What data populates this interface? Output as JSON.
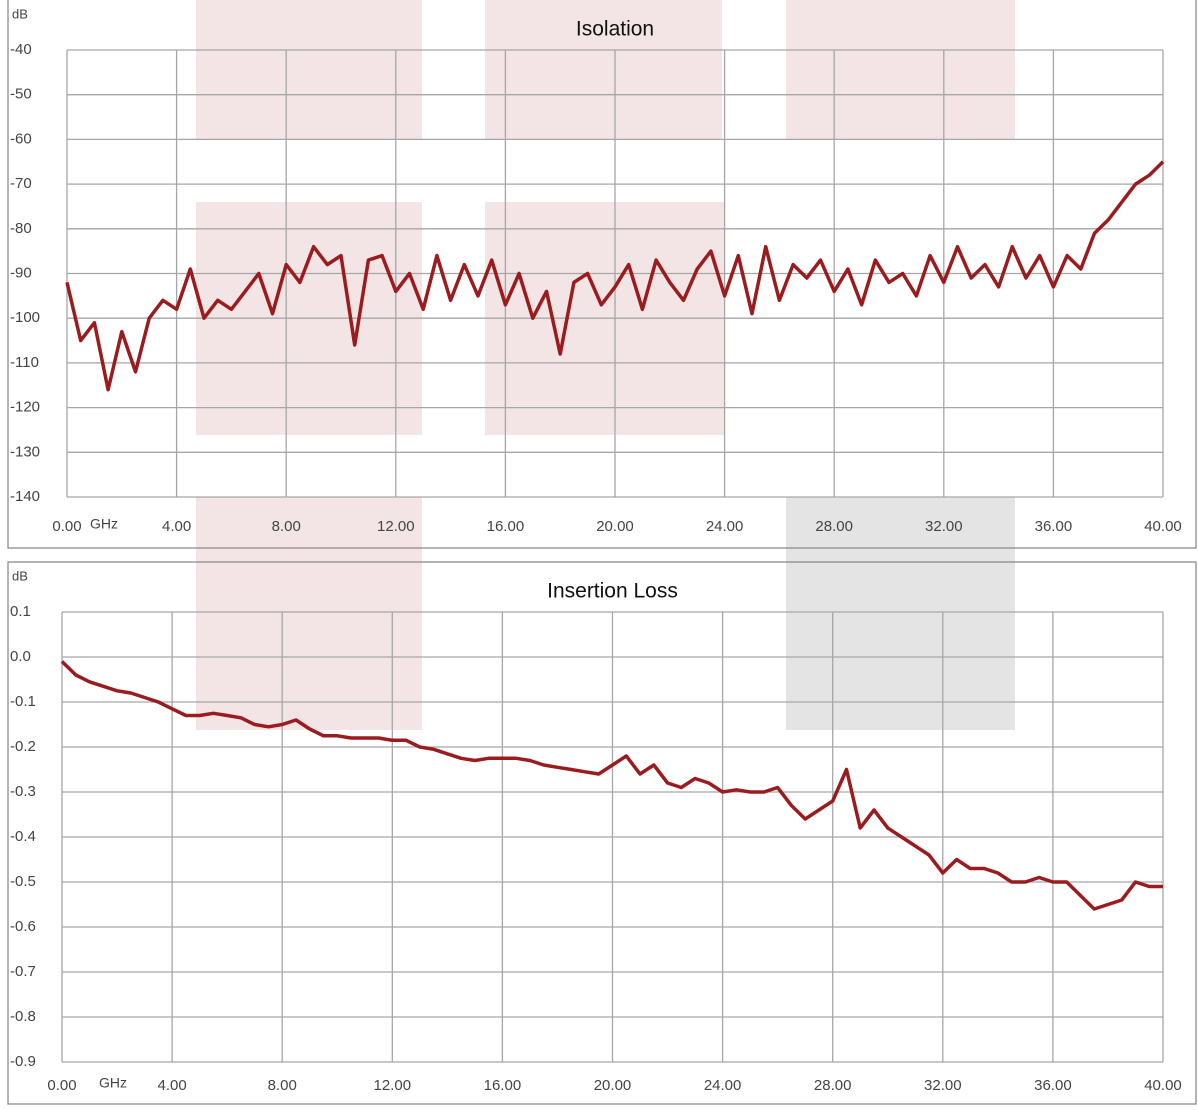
{
  "chart_data": [
    {
      "type": "line",
      "title": "Isolation",
      "y_label": "dB",
      "x_label": "GHz",
      "color": "#9b1c1f",
      "x": [
        0,
        0.5,
        1,
        1.5,
        2,
        2.5,
        3,
        3.5,
        4,
        4.5,
        5,
        5.5,
        6,
        6.5,
        7,
        7.5,
        8,
        8.5,
        9,
        9.5,
        10,
        10.5,
        11,
        11.5,
        12,
        12.5,
        13,
        13.5,
        14,
        14.5,
        15,
        15.5,
        16,
        16.5,
        17,
        17.5,
        18,
        18.5,
        19,
        19.5,
        20,
        20.5,
        21,
        21.5,
        22,
        22.5,
        23,
        23.5,
        24,
        24.5,
        25,
        25.5,
        26,
        26.5,
        27,
        27.5,
        28,
        28.5,
        29,
        29.5,
        30,
        30.5,
        31,
        31.5,
        32,
        32.5,
        33,
        33.5,
        34,
        34.5,
        35,
        35.5,
        36,
        36.5,
        37,
        37.5,
        38,
        38.5,
        39,
        39.5,
        40
      ],
      "values": [
        -92,
        -105,
        -101,
        -116,
        -103,
        -112,
        -100,
        -96,
        -98,
        -89,
        -100,
        -96,
        -98,
        -94,
        -90,
        -99,
        -88,
        -92,
        -84,
        -88,
        -86,
        -106,
        -87,
        -86,
        -94,
        -90,
        -98,
        -86,
        -96,
        -88,
        -95,
        -87,
        -97,
        -90,
        -100,
        -94,
        -108,
        -92,
        -90,
        -97,
        -93,
        -88,
        -98,
        -87,
        -92,
        -96,
        -89,
        -85,
        -95,
        -86,
        -99,
        -84,
        -96,
        -88,
        -91,
        -87,
        -94,
        -89,
        -97,
        -87,
        -92,
        -90,
        -95,
        -86,
        -92,
        -84,
        -91,
        -88,
        -93,
        -84,
        -91,
        -86,
        -93,
        -86,
        -89,
        -81,
        -78,
        -74,
        -70,
        -68,
        -65
      ],
      "xlim": [
        0,
        40
      ],
      "xticks": [
        {
          "value": 0,
          "label": "0.00"
        },
        {
          "value": 4,
          "label": "4.00"
        },
        {
          "value": 8,
          "label": "8.00"
        },
        {
          "value": 12,
          "label": "12.00"
        },
        {
          "value": 16,
          "label": "16.00"
        },
        {
          "value": 20,
          "label": "20.00"
        },
        {
          "value": 24,
          "label": "24.00"
        },
        {
          "value": 28,
          "label": "28.00"
        },
        {
          "value": 32,
          "label": "32.00"
        },
        {
          "value": 36,
          "label": "36.00"
        },
        {
          "value": 40,
          "label": "40.00"
        }
      ],
      "ylim": [
        -140,
        -40
      ],
      "yticks": [
        -40,
        -50,
        -60,
        -70,
        -80,
        -90,
        -100,
        -110,
        -120,
        -130,
        -140
      ],
      "grid": true
    },
    {
      "type": "line",
      "title": "Insertion Loss",
      "y_label": "dB",
      "x_label": "GHz",
      "color": "#9b1c1f",
      "x": [
        0,
        0.5,
        1,
        1.5,
        2,
        2.5,
        3,
        3.5,
        4,
        4.5,
        5,
        5.5,
        6,
        6.5,
        7,
        7.5,
        8,
        8.5,
        9,
        9.5,
        10,
        10.5,
        11,
        11.5,
        12,
        12.5,
        13,
        13.5,
        14,
        14.5,
        15,
        15.5,
        16,
        16.5,
        17,
        17.5,
        18,
        18.5,
        19,
        19.5,
        20,
        20.5,
        21,
        21.5,
        22,
        22.5,
        23,
        23.5,
        24,
        24.5,
        25,
        25.5,
        26,
        26.5,
        27,
        27.5,
        28,
        28.5,
        29,
        29.5,
        30,
        30.5,
        31,
        31.5,
        32,
        32.5,
        33,
        33.5,
        34,
        34.5,
        35,
        35.5,
        36,
        36.5,
        37,
        37.5,
        38,
        38.5,
        39,
        39.5,
        40
      ],
      "values": [
        -0.01,
        -0.04,
        -0.055,
        -0.065,
        -0.075,
        -0.08,
        -0.09,
        -0.1,
        -0.115,
        -0.13,
        -0.13,
        -0.125,
        -0.13,
        -0.135,
        -0.15,
        -0.155,
        -0.15,
        -0.14,
        -0.16,
        -0.175,
        -0.175,
        -0.18,
        -0.18,
        -0.18,
        -0.185,
        -0.185,
        -0.2,
        -0.205,
        -0.215,
        -0.225,
        -0.23,
        -0.225,
        -0.225,
        -0.225,
        -0.23,
        -0.24,
        -0.245,
        -0.25,
        -0.255,
        -0.26,
        -0.24,
        -0.22,
        -0.26,
        -0.24,
        -0.28,
        -0.29,
        -0.27,
        -0.28,
        -0.3,
        -0.295,
        -0.3,
        -0.3,
        -0.29,
        -0.33,
        -0.36,
        -0.34,
        -0.32,
        -0.25,
        -0.38,
        -0.34,
        -0.38,
        -0.4,
        -0.42,
        -0.44,
        -0.48,
        -0.45,
        -0.47,
        -0.47,
        -0.48,
        -0.5,
        -0.5,
        -0.49,
        -0.5,
        -0.5,
        -0.53,
        -0.56,
        -0.55,
        -0.54,
        -0.5,
        -0.51,
        -0.51
      ],
      "xlim": [
        0,
        40
      ],
      "xticks": [
        {
          "value": 0,
          "label": "0.00"
        },
        {
          "value": 4,
          "label": "4.00"
        },
        {
          "value": 8,
          "label": "8.00"
        },
        {
          "value": 12,
          "label": "12.00"
        },
        {
          "value": 16,
          "label": "16.00"
        },
        {
          "value": 20,
          "label": "20.00"
        },
        {
          "value": 24,
          "label": "24.00"
        },
        {
          "value": 28,
          "label": "28.00"
        },
        {
          "value": 32,
          "label": "32.00"
        },
        {
          "value": 36,
          "label": "36.00"
        },
        {
          "value": 40,
          "label": "40.00"
        }
      ],
      "ylim": [
        -0.9,
        0.1
      ],
      "yticks": [
        0.1,
        {
          "value": 0,
          "label": "0.0"
        },
        -0.1,
        -0.2,
        -0.3,
        -0.4,
        -0.5,
        -0.6,
        -0.7,
        -0.8,
        -0.9
      ],
      "grid": true
    }
  ]
}
